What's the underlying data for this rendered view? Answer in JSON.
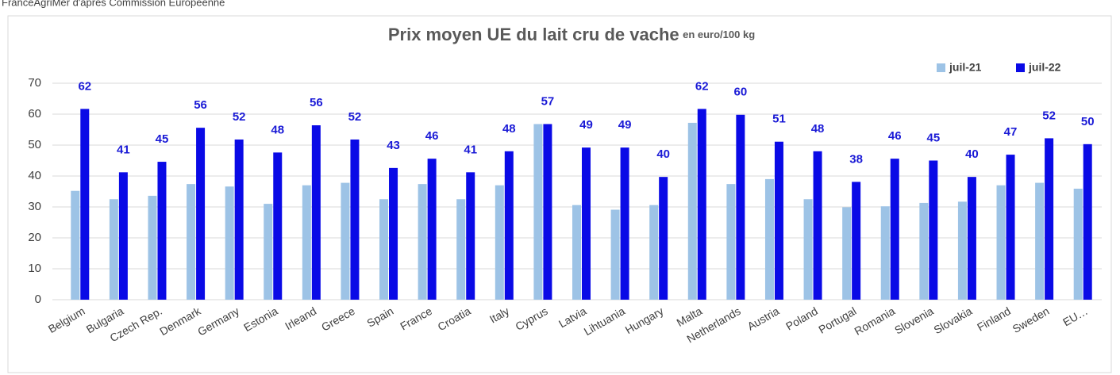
{
  "chart_data": {
    "type": "bar",
    "source": "FranceAgriMer d'après Commission Européenne",
    "title": "Prix moyen UE du lait cru de vache",
    "subtitle": "en euro/100 kg",
    "categories": [
      "Belgium",
      "Bulgaria",
      "Czech Rep.",
      "Denmark",
      "Germany",
      "Estonia",
      "Irleand",
      "Greece",
      "Spain",
      "France",
      "Croatia",
      "Italy",
      "Cyprus",
      "Latvia",
      "Lihtuania",
      "Hungary",
      "Malta",
      "Netherlands",
      "Austria",
      "Poland",
      "Portugal",
      "Romania",
      "Slovenia",
      "Slovakia",
      "Finland",
      "Sweden",
      "EU…"
    ],
    "series": [
      {
        "name": "juil-21",
        "color": "#9dc3e6",
        "values": [
          35.2,
          32.5,
          33.6,
          37.4,
          36.6,
          31,
          37,
          37.8,
          32.5,
          37.4,
          32.5,
          37,
          56.8,
          30.6,
          29.1,
          30.6,
          57.2,
          37.4,
          39,
          32.5,
          29.9,
          30.2,
          31.3,
          31.7,
          37,
          37.8,
          35.9
        ]
      },
      {
        "name": "juil-22",
        "color": "#0a0ae6",
        "values": [
          61.7,
          41.2,
          44.6,
          55.6,
          51.8,
          47.6,
          56.4,
          51.8,
          42.6,
          45.6,
          41.2,
          48,
          56.8,
          49.2,
          49.2,
          39.7,
          61.7,
          59.8,
          51.1,
          48,
          38.1,
          45.6,
          45,
          39.7,
          46.9,
          52.2,
          50.3
        ],
        "value_labels": [
          "62",
          "41",
          "45",
          "56",
          "52",
          "48",
          "56",
          "52",
          "43",
          "46",
          "41",
          "48",
          "57",
          "49",
          "49",
          "40",
          "62",
          "60",
          "51",
          "48",
          "38",
          "46",
          "45",
          "40",
          "47",
          "52",
          "50"
        ]
      }
    ],
    "ylim": [
      0,
      70
    ],
    "yticks": [
      0,
      10,
      20,
      30,
      40,
      50,
      60,
      70
    ],
    "grid": true,
    "legend": "top-right"
  }
}
